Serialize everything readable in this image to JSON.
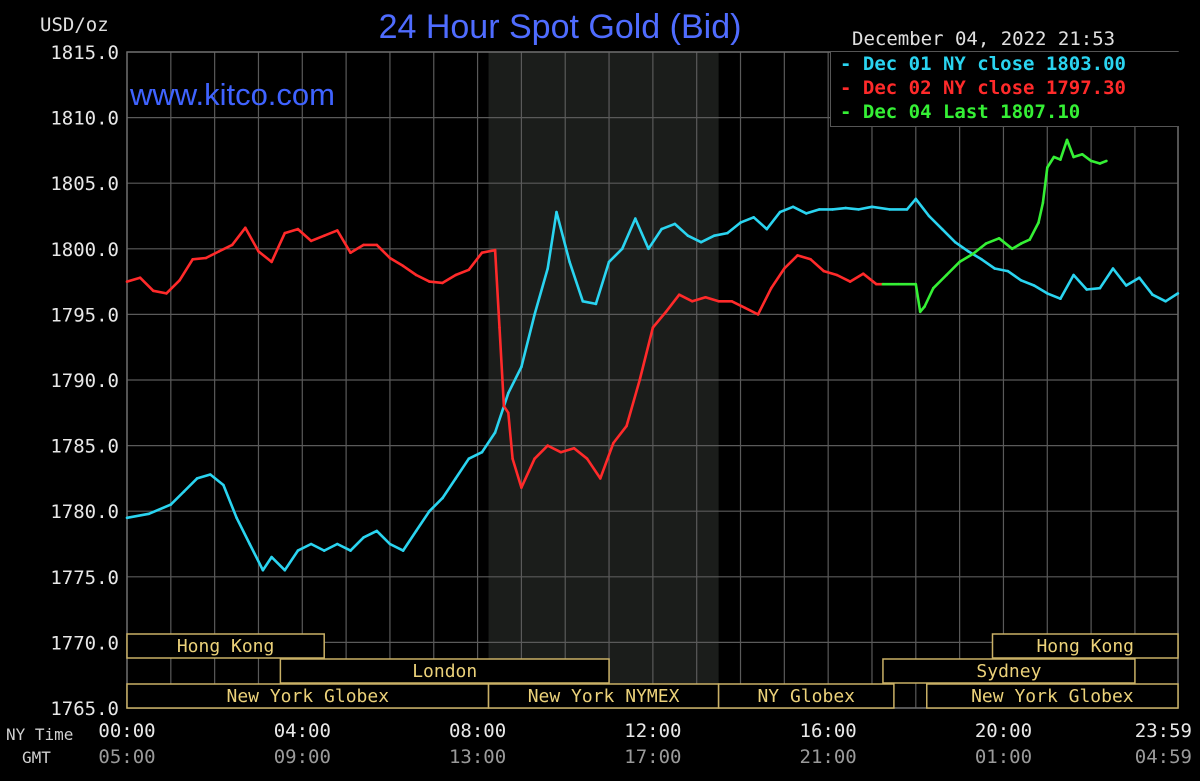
{
  "header": {
    "title": "24 Hour Spot Gold (Bid)",
    "unit": "USD/oz",
    "timestamp": "December 04, 2022 21:53",
    "watermark": "www.kitco.com"
  },
  "legend": [
    {
      "label": "Dec 01 NY close 1803.00",
      "color": "#2ad4f0"
    },
    {
      "label": "Dec 02 NY close 1797.30",
      "color": "#ff2a2a"
    },
    {
      "label": "Dec 04 Last 1807.10",
      "color": "#35f035"
    }
  ],
  "axis": {
    "ny_time_label": "NY Time",
    "gmt_label": "GMT",
    "y_ticks": [
      "1815.0",
      "1810.0",
      "1805.0",
      "1800.0",
      "1795.0",
      "1790.0",
      "1785.0",
      "1780.0",
      "1775.0",
      "1770.0",
      "1765.0"
    ],
    "x_ny": [
      "00:00",
      "04:00",
      "08:00",
      "12:00",
      "16:00",
      "20:00",
      "23:59"
    ],
    "x_gmt": [
      "05:00",
      "09:00",
      "13:00",
      "17:00",
      "21:00",
      "01:00",
      "04:59"
    ]
  },
  "sessions": [
    {
      "label": "Hong Kong",
      "row": 0,
      "start": 0.0,
      "end": 4.5
    },
    {
      "label": "London",
      "row": 1,
      "start": 3.5,
      "end": 11.0
    },
    {
      "label": "New York Globex",
      "row": 2,
      "start": 0.0,
      "end": 8.25
    },
    {
      "label": "New York NYMEX",
      "row": 2,
      "start": 8.25,
      "end": 13.5
    },
    {
      "label": "NY Globex",
      "row": 2,
      "start": 13.5,
      "end": 17.5
    },
    {
      "label": "Hong Kong",
      "row": 0,
      "start": 19.75,
      "end": 23.983
    },
    {
      "label": "Sydney",
      "row": 1,
      "start": 17.25,
      "end": 23.0
    },
    {
      "label": "New York Globex",
      "row": 2,
      "start": 18.25,
      "end": 23.983
    }
  ],
  "chart_data": {
    "type": "line",
    "title": "24 Hour Spot Gold (Bid)",
    "ylabel": "USD/oz",
    "xlabel": "NY Time",
    "xlim": [
      0,
      23.983
    ],
    "ylim": [
      1765,
      1815
    ],
    "grid": true,
    "legend_position": "top-right",
    "shaded_region": [
      8.25,
      13.5
    ],
    "series": [
      {
        "name": "Dec 01 NY close 1803.00",
        "color": "#2ad4f0",
        "x": [
          0,
          0.5,
          1,
          1.3,
          1.6,
          1.9,
          2.2,
          2.5,
          2.8,
          3.1,
          3.3,
          3.6,
          3.9,
          4.2,
          4.5,
          4.8,
          5.1,
          5.4,
          5.7,
          6.0,
          6.3,
          6.6,
          6.9,
          7.2,
          7.5,
          7.8,
          8.1,
          8.4,
          8.7,
          9.0,
          9.3,
          9.6,
          9.8,
          10.1,
          10.4,
          10.7,
          11.0,
          11.3,
          11.6,
          11.9,
          12.2,
          12.5,
          12.8,
          13.1,
          13.4,
          13.7,
          14.0,
          14.3,
          14.6,
          14.9,
          15.2,
          15.5,
          15.8,
          16.1,
          16.4,
          16.7,
          17.0,
          17.4,
          17.8,
          18.0,
          18.3,
          18.6,
          18.9,
          19.2,
          19.5,
          19.8,
          20.1,
          20.4,
          20.7,
          21.0,
          21.3,
          21.6,
          21.9,
          22.2,
          22.5,
          22.8,
          23.1,
          23.4,
          23.7,
          23.98
        ],
        "y": [
          1779.5,
          1779.8,
          1780.5,
          1781.5,
          1782.5,
          1782.8,
          1782.0,
          1779.5,
          1777.5,
          1775.5,
          1776.5,
          1775.5,
          1777.0,
          1777.5,
          1777.0,
          1777.5,
          1777.0,
          1778.0,
          1778.5,
          1777.5,
          1777.0,
          1778.5,
          1780.0,
          1781.0,
          1782.5,
          1784.0,
          1784.5,
          1786.0,
          1789.0,
          1791.0,
          1795.0,
          1798.5,
          1802.8,
          1799.0,
          1796.0,
          1795.8,
          1799.0,
          1800.0,
          1802.3,
          1800.0,
          1801.5,
          1801.9,
          1801.0,
          1800.5,
          1801.0,
          1801.2,
          1802.0,
          1802.4,
          1801.5,
          1802.8,
          1803.2,
          1802.7,
          1803.0,
          1803.0,
          1803.1,
          1803.0,
          1803.2,
          1803.0,
          1803.0,
          1803.8,
          1802.5,
          1801.5,
          1800.5,
          1799.8,
          1799.2,
          1798.5,
          1798.3,
          1797.6,
          1797.2,
          1796.6,
          1796.2,
          1798.0,
          1796.9,
          1797.0,
          1798.5,
          1797.2,
          1797.8,
          1796.5,
          1796.0,
          1796.6
        ]
      },
      {
        "name": "Dec 02 NY close 1797.30",
        "color": "#ff2a2a",
        "x": [
          0,
          0.3,
          0.6,
          0.9,
          1.2,
          1.5,
          1.8,
          2.1,
          2.4,
          2.7,
          3.0,
          3.3,
          3.6,
          3.9,
          4.2,
          4.5,
          4.8,
          5.1,
          5.4,
          5.7,
          6.0,
          6.3,
          6.6,
          6.9,
          7.2,
          7.5,
          7.8,
          8.1,
          8.4,
          8.5,
          8.6,
          8.7,
          8.8,
          9.0,
          9.3,
          9.6,
          9.9,
          10.2,
          10.5,
          10.8,
          11.1,
          11.4,
          11.7,
          12.0,
          12.3,
          12.6,
          12.9,
          13.2,
          13.5,
          13.8,
          14.1,
          14.4,
          14.7,
          15.0,
          15.3,
          15.6,
          15.9,
          16.2,
          16.5,
          16.8,
          17.1,
          17.25
        ],
        "y": [
          1797.5,
          1797.8,
          1796.8,
          1796.6,
          1797.6,
          1799.2,
          1799.3,
          1799.8,
          1800.3,
          1801.6,
          1799.8,
          1799.0,
          1801.2,
          1801.5,
          1800.6,
          1801.0,
          1801.4,
          1799.7,
          1800.3,
          1800.3,
          1799.3,
          1798.7,
          1798.0,
          1797.5,
          1797.4,
          1798.0,
          1798.4,
          1799.7,
          1799.9,
          1794.0,
          1788.0,
          1787.5,
          1784.0,
          1781.8,
          1784.0,
          1785.0,
          1784.5,
          1784.8,
          1784.0,
          1782.5,
          1785.2,
          1786.5,
          1790.0,
          1794.0,
          1795.2,
          1796.5,
          1796.0,
          1796.3,
          1796.0,
          1796.0,
          1795.5,
          1795.0,
          1797.0,
          1798.5,
          1799.5,
          1799.2,
          1798.3,
          1798.0,
          1797.5,
          1798.1,
          1797.3,
          1797.3
        ]
      },
      {
        "name": "Dec 04 Last 1807.10",
        "color": "#35f035",
        "x": [
          17.25,
          17.6,
          18.0,
          18.1,
          18.2,
          18.4,
          18.7,
          19.0,
          19.3,
          19.6,
          19.9,
          20.2,
          20.4,
          20.6,
          20.8,
          20.9,
          21.0,
          21.15,
          21.3,
          21.45,
          21.6,
          21.8,
          22.0,
          22.2,
          22.35
        ],
        "y": [
          1797.3,
          1797.3,
          1797.3,
          1795.2,
          1795.6,
          1797.0,
          1798.0,
          1799.0,
          1799.6,
          1800.4,
          1800.8,
          1800.0,
          1800.4,
          1800.7,
          1802.0,
          1803.5,
          1806.2,
          1807.0,
          1806.8,
          1808.3,
          1807.0,
          1807.2,
          1806.7,
          1806.5,
          1806.7
        ]
      }
    ]
  }
}
